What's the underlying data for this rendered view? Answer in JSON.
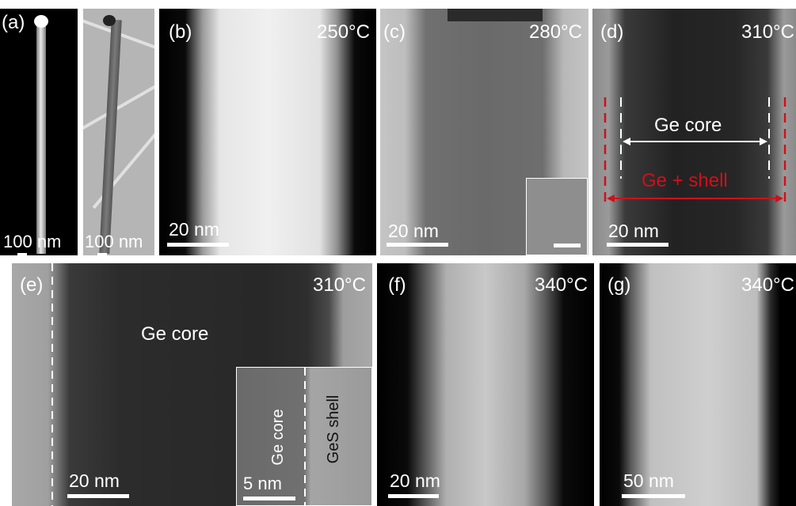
{
  "colors": {
    "annotation_white": "#ffffff",
    "annotation_red": "#d0101a",
    "annotation_black": "#111111"
  },
  "panels": {
    "a": {
      "label": "(a)",
      "left_scale": "100 nm",
      "right_scale": "100 nm"
    },
    "b": {
      "label": "(b)",
      "temperature": "250°C",
      "scale": "20 nm"
    },
    "c": {
      "label": "(c)",
      "temperature": "280°C",
      "scale": "20 nm"
    },
    "d": {
      "label": "(d)",
      "temperature": "310°C",
      "scale": "20 nm",
      "core_label": "Ge core",
      "shell_label": "Ge + shell"
    },
    "e": {
      "label": "(e)",
      "temperature": "310°C",
      "scale": "20 nm",
      "core_label": "Ge core",
      "inset": {
        "core_label": "Ge core",
        "shell_label": "GeS shell",
        "scale": "5 nm"
      }
    },
    "f": {
      "label": "(f)",
      "temperature": "340°C",
      "scale": "20 nm"
    },
    "g": {
      "label": "(g)",
      "temperature": "340°C",
      "scale": "50 nm"
    }
  }
}
